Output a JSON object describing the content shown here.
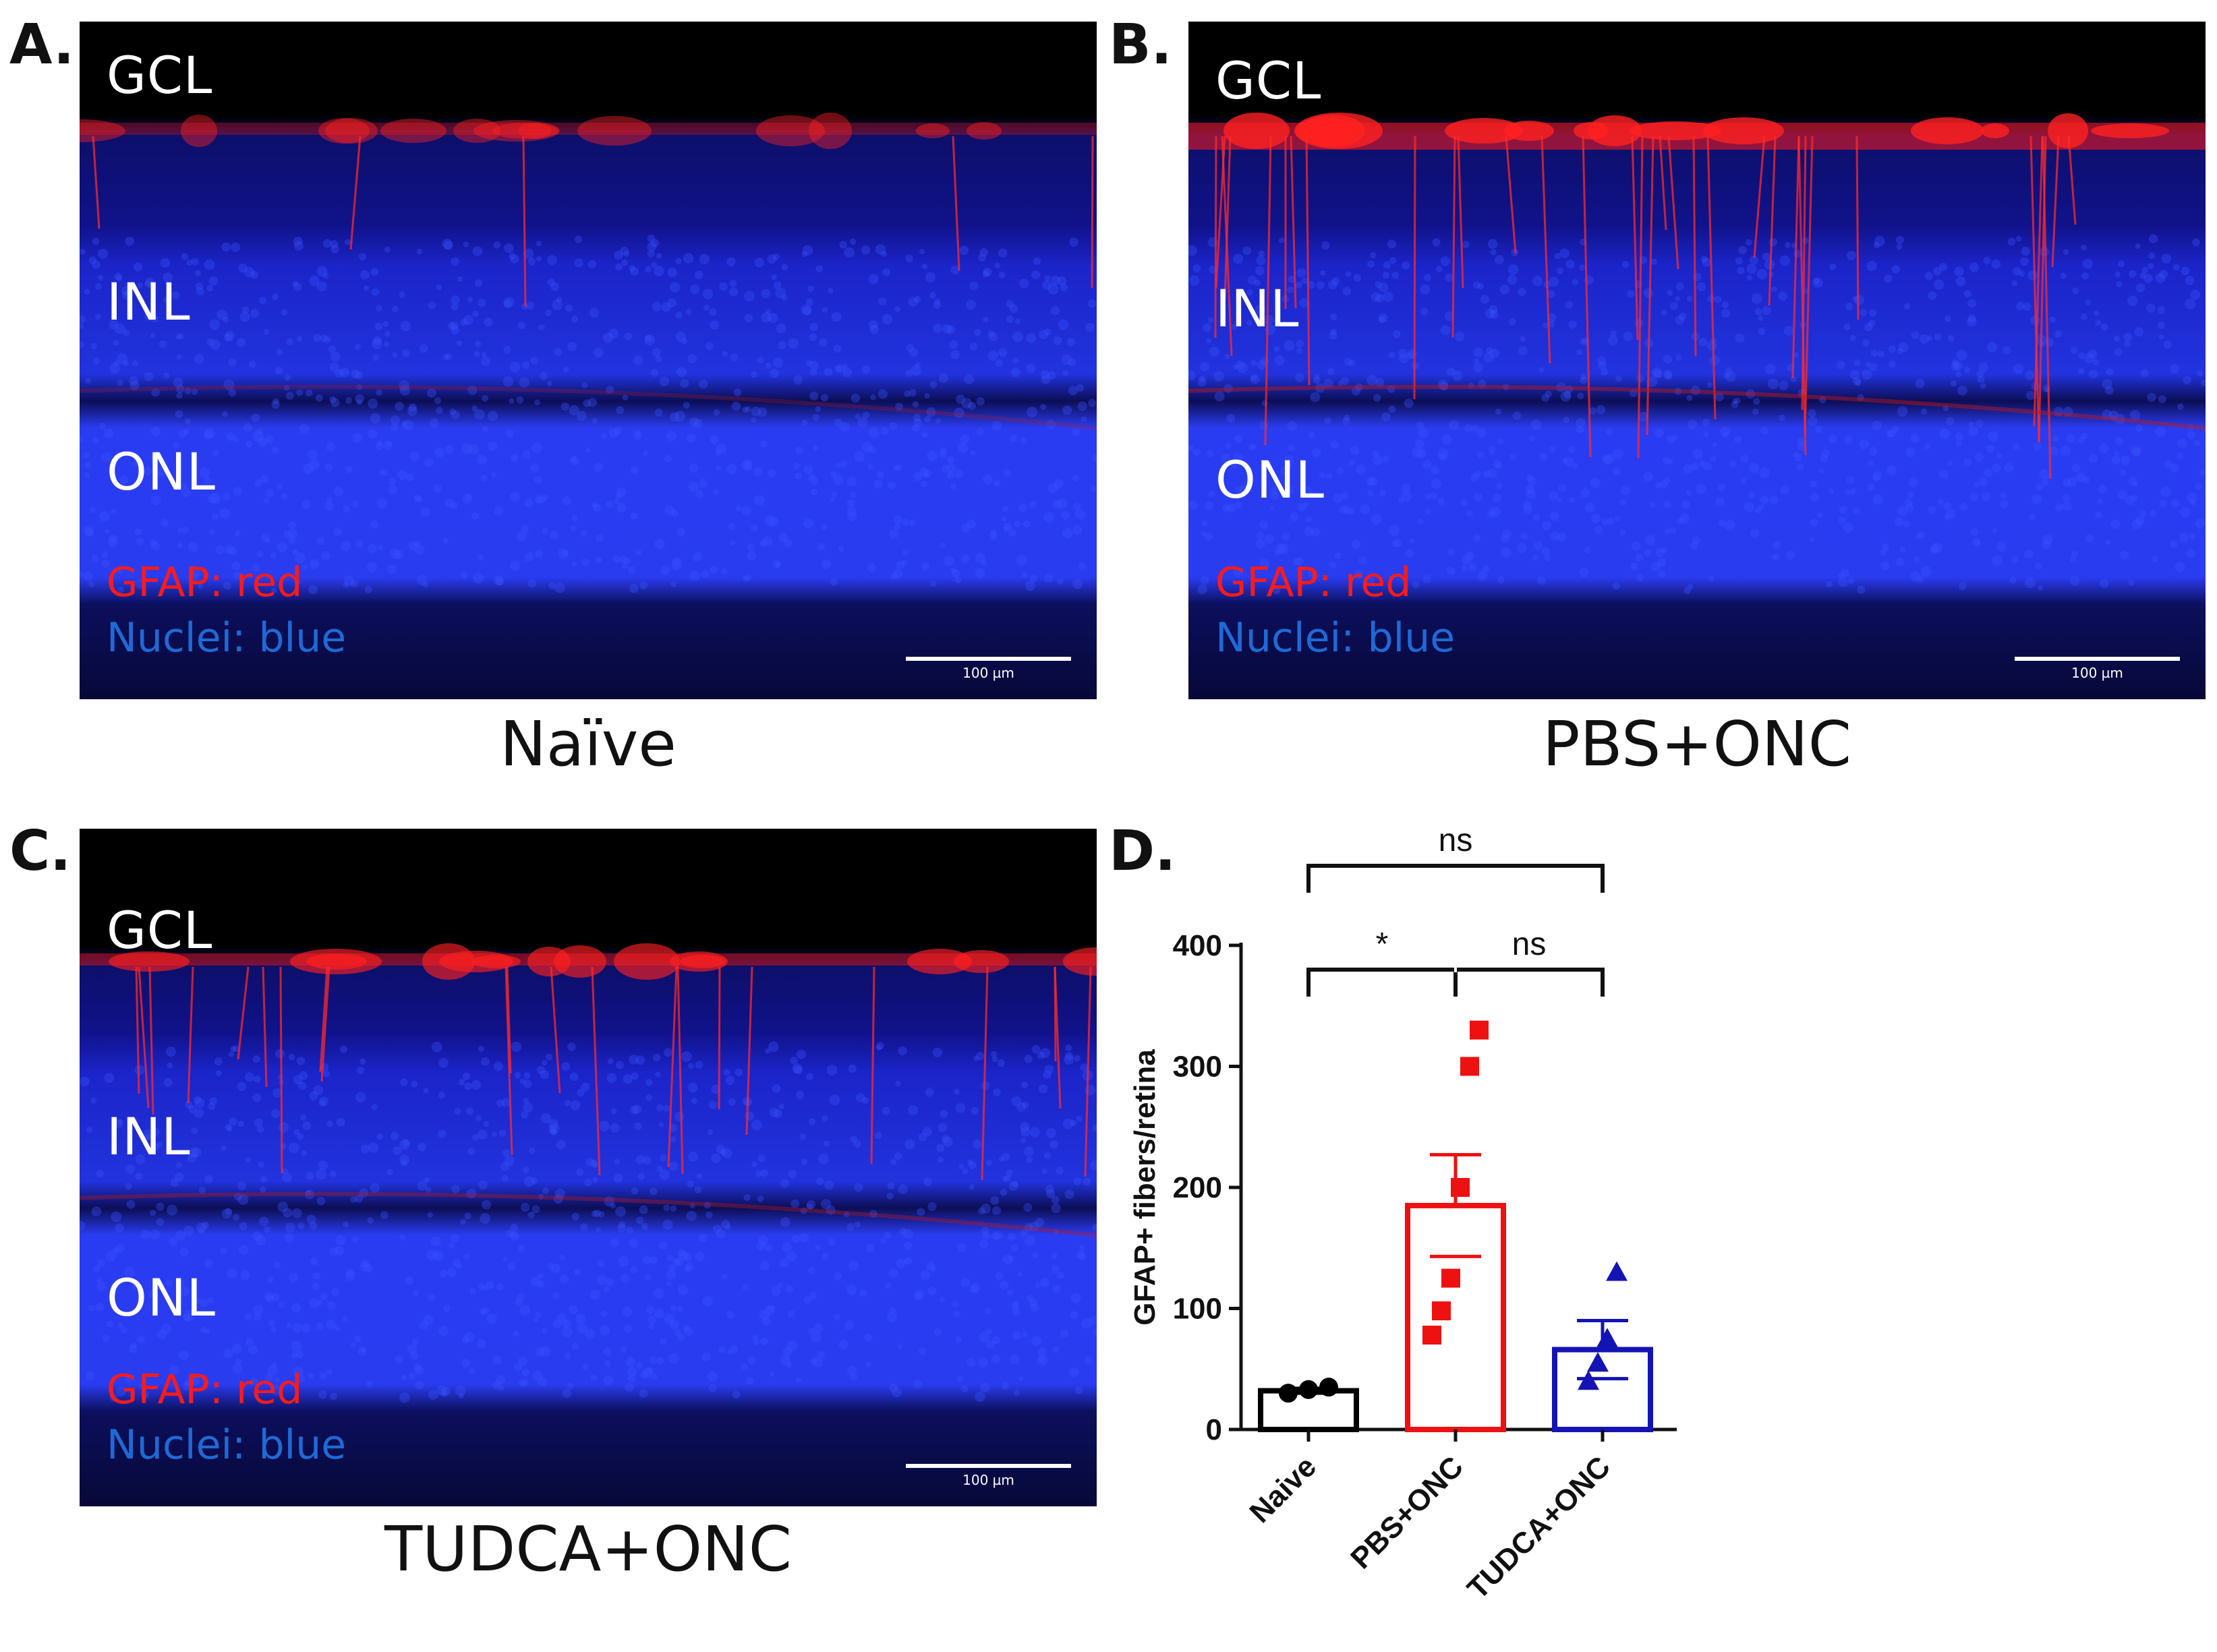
{
  "panels": [
    {
      "letter": "A.",
      "caption": "Naïve",
      "layers": {
        "gcl": "GCL",
        "inl": "INL",
        "onl": "ONL"
      },
      "legend_red": "GFAP: red",
      "legend_blue": "Nuclei: blue",
      "scale": "100 µm"
    },
    {
      "letter": "B.",
      "caption": "PBS+ONC",
      "layers": {
        "gcl": "GCL",
        "inl": "INL",
        "onl": "ONL"
      },
      "legend_red": "GFAP: red",
      "legend_blue": "Nuclei: blue",
      "scale": "100 µm"
    },
    {
      "letter": "C.",
      "caption": "TUDCA+ONC",
      "layers": {
        "gcl": "GCL",
        "inl": "INL",
        "onl": "ONL"
      },
      "legend_red": "GFAP: red",
      "legend_blue": "Nuclei: blue",
      "scale": "100 µm"
    }
  ],
  "colors": {
    "naive": "#000000",
    "pbs": "#ee1111",
    "tudca": "#1414b4",
    "gfap": "#ff1a1a",
    "nuclei": "#1e6ad6"
  },
  "chart_data": {
    "letter": "D.",
    "type": "bar",
    "title": "",
    "xlabel": "",
    "ylabel": "GFAP+ fibers/retina",
    "ylim": [
      0,
      400
    ],
    "yticks": [
      0,
      100,
      200,
      300,
      400
    ],
    "categories": [
      "Naive",
      "PBS+ONC",
      "TUDCA+ONC"
    ],
    "means": [
      32,
      185,
      66
    ],
    "sem": [
      2,
      42,
      24
    ],
    "points": [
      [
        30,
        33,
        35
      ],
      [
        78,
        98,
        125,
        200,
        300,
        330
      ],
      [
        40,
        55,
        75,
        130
      ]
    ],
    "markers": [
      "circle",
      "square",
      "triangle"
    ],
    "comparisons": [
      {
        "from": "Naive",
        "to": "PBS+ONC",
        "label": "*"
      },
      {
        "from": "PBS+ONC",
        "to": "TUDCA+ONC",
        "label": "ns"
      },
      {
        "from": "Naive",
        "to": "TUDCA+ONC",
        "label": "ns"
      }
    ]
  }
}
